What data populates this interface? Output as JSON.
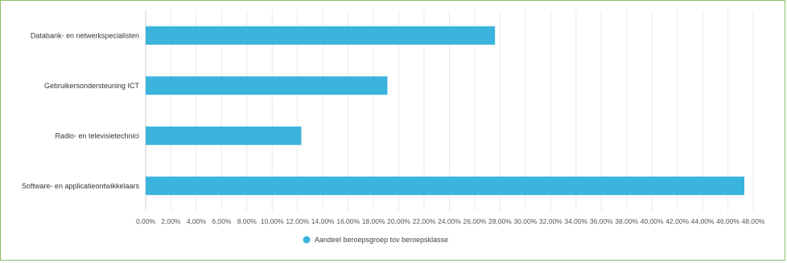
{
  "chart_data": {
    "type": "bar",
    "orientation": "horizontal",
    "title": "",
    "xlabel": "",
    "ylabel": "",
    "categories": [
      "Databank- en netwerkspecialisten",
      "Gebruikersondersteuning ICT",
      "Radio- en televisietechnici",
      "Software- en applicatieontwikkelaars"
    ],
    "series": [
      {
        "name": "Aandeel beroepsgroep tov beroepsklasse",
        "values": [
          27.6,
          19.1,
          12.3,
          47.3
        ],
        "color": "#3ab4dd"
      }
    ],
    "xlim": [
      0,
      48
    ],
    "x_ticks": [
      "0,00%",
      "2,00%",
      "4,00%",
      "6,00%",
      "8,00%",
      "10,00%",
      "12,00%",
      "14,00%",
      "16,00%",
      "18,00%",
      "20,00%",
      "22,00%",
      "24,00%",
      "26,00%",
      "28,00%",
      "30,00%",
      "32,00%",
      "34,00%",
      "36,00%",
      "38,00%",
      "40,00%",
      "42,00%",
      "44,00%",
      "46,00%",
      "48,00%"
    ],
    "grid": true,
    "legend_position": "bottom-center"
  }
}
